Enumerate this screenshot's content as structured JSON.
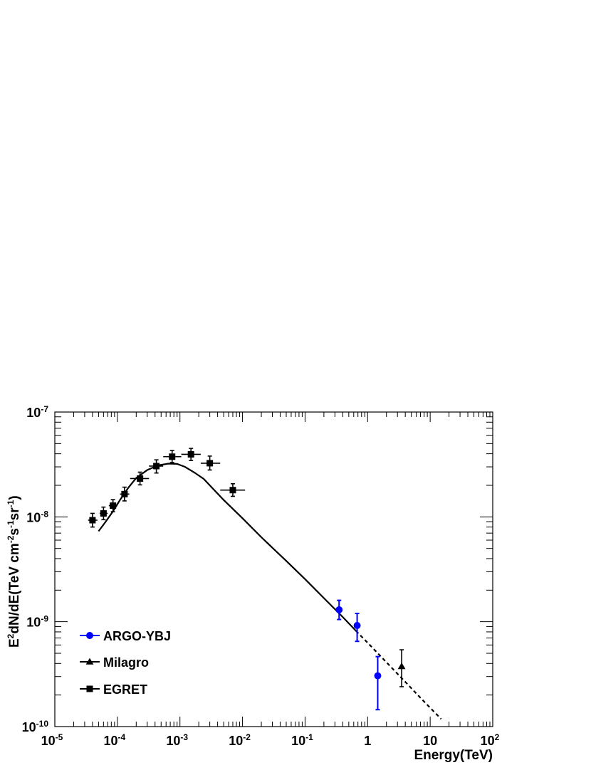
{
  "chart_data": {
    "type": "scatter",
    "xlabel": "Energy(TeV)",
    "ylabel": "E2dN/dE(TeV cm-2s-1sr-1)",
    "xscale": "log",
    "yscale": "log",
    "xlim": [
      1e-05,
      100
    ],
    "ylim": [
      1e-10,
      1e-07
    ],
    "grid": false,
    "legend_position": "bottom-left",
    "x_tick_labels": [
      {
        "value": 1e-05,
        "base": "10",
        "exp": "-5"
      },
      {
        "value": 0.0001,
        "base": "10",
        "exp": "-4"
      },
      {
        "value": 0.001,
        "base": "10",
        "exp": "-3"
      },
      {
        "value": 0.01,
        "base": "10",
        "exp": "-2"
      },
      {
        "value": 0.1,
        "base": "10",
        "exp": "-1"
      },
      {
        "value": 1,
        "base": "1",
        "exp": ""
      },
      {
        "value": 10,
        "base": "10",
        "exp": ""
      },
      {
        "value": 100,
        "base": "10",
        "exp": "2"
      }
    ],
    "y_tick_labels": [
      {
        "value": 1e-10,
        "base": "10",
        "exp": "-10"
      },
      {
        "value": 1e-09,
        "base": "10",
        "exp": "-9"
      },
      {
        "value": 1e-08,
        "base": "10",
        "exp": "-8"
      },
      {
        "value": 1e-07,
        "base": "10",
        "exp": "-7"
      }
    ],
    "series": [
      {
        "name": "ARGO-YBJ",
        "color": "#0000ff",
        "marker": "circle",
        "points": [
          {
            "x": 0.35,
            "y": 1.3e-09,
            "ylo": 1.05e-09,
            "yhi": 1.6e-09
          },
          {
            "x": 0.68,
            "y": 9.2e-10,
            "ylo": 6.5e-10,
            "yhi": 1.2e-09
          },
          {
            "x": 1.45,
            "y": 3.05e-10,
            "ylo": 1.45e-10,
            "yhi": 4.65e-10
          }
        ]
      },
      {
        "name": "Milagro",
        "color": "#000000",
        "marker": "triangle",
        "points": [
          {
            "x": 3.5,
            "y": 3.75e-10,
            "ylo": 2.4e-10,
            "yhi": 5.4e-10
          }
        ]
      },
      {
        "name": "EGRET",
        "color": "#000000",
        "marker": "square",
        "points": [
          {
            "x": 4e-05,
            "y": 9.3e-09,
            "xlo": 3.4e-05,
            "xhi": 4.8e-05,
            "ylo": 8e-09,
            "yhi": 1.08e-08
          },
          {
            "x": 6e-05,
            "y": 1.08e-08,
            "xlo": 5.2e-05,
            "xhi": 7e-05,
            "ylo": 9.4e-09,
            "yhi": 1.24e-08
          },
          {
            "x": 8.5e-05,
            "y": 1.28e-08,
            "xlo": 7.3e-05,
            "xhi": 0.0001,
            "ylo": 1.12e-08,
            "yhi": 1.46e-08
          },
          {
            "x": 0.00013,
            "y": 1.65e-08,
            "xlo": 0.00011,
            "xhi": 0.000155,
            "ylo": 1.42e-08,
            "yhi": 1.92e-08
          },
          {
            "x": 0.00023,
            "y": 2.32e-08,
            "xlo": 0.00016,
            "xhi": 0.00032,
            "ylo": 2.02e-08,
            "yhi": 2.67e-08
          },
          {
            "x": 0.00042,
            "y": 3.05e-08,
            "xlo": 0.00032,
            "xhi": 0.00054,
            "ylo": 2.62e-08,
            "yhi": 3.5e-08
          },
          {
            "x": 0.00075,
            "y": 3.75e-08,
            "xlo": 0.00054,
            "xhi": 0.00105,
            "ylo": 3.3e-08,
            "yhi": 4.3e-08
          },
          {
            "x": 0.0015,
            "y": 3.95e-08,
            "xlo": 0.00105,
            "xhi": 0.00215,
            "ylo": 3.45e-08,
            "yhi": 4.5e-08
          },
          {
            "x": 0.003,
            "y": 3.25e-08,
            "xlo": 0.00215,
            "xhi": 0.0044,
            "ylo": 2.8e-08,
            "yhi": 3.8e-08
          },
          {
            "x": 0.007,
            "y": 1.8e-08,
            "xlo": 0.0044,
            "xhi": 0.011,
            "ylo": 1.57e-08,
            "yhi": 2.07e-08
          }
        ]
      }
    ],
    "model_curve": {
      "solid": [
        [
          5e-05,
          7.3e-09
        ],
        [
          6.5e-05,
          9e-09
        ],
        [
          8.5e-05,
          1.13e-08
        ],
        [
          0.00011,
          1.45e-08
        ],
        [
          0.00015,
          1.9e-08
        ],
        [
          0.0002,
          2.35e-08
        ],
        [
          0.0003,
          2.8e-08
        ],
        [
          0.00045,
          3.1e-08
        ],
        [
          0.00065,
          3.22e-08
        ],
        [
          0.0009,
          3.2e-08
        ],
        [
          0.0012,
          3e-08
        ],
        [
          0.0017,
          2.65e-08
        ],
        [
          0.0024,
          2.3e-08
        ],
        [
          0.005,
          1.45e-08
        ],
        [
          0.01,
          9.7e-09
        ],
        [
          0.02,
          6.4e-09
        ],
        [
          0.05,
          3.8e-09
        ],
        [
          0.1,
          2.55e-09
        ],
        [
          0.2,
          1.68e-09
        ],
        [
          0.4,
          1.11e-09
        ],
        [
          0.65,
          8.2e-10
        ]
      ],
      "dashed": [
        [
          0.65,
          8.2e-10
        ],
        [
          1.0,
          6.3e-10
        ],
        [
          2.0,
          4.1e-10
        ],
        [
          4.0,
          2.67e-10
        ],
        [
          8.0,
          1.73e-10
        ],
        [
          15.0,
          1.18e-10
        ]
      ]
    }
  }
}
